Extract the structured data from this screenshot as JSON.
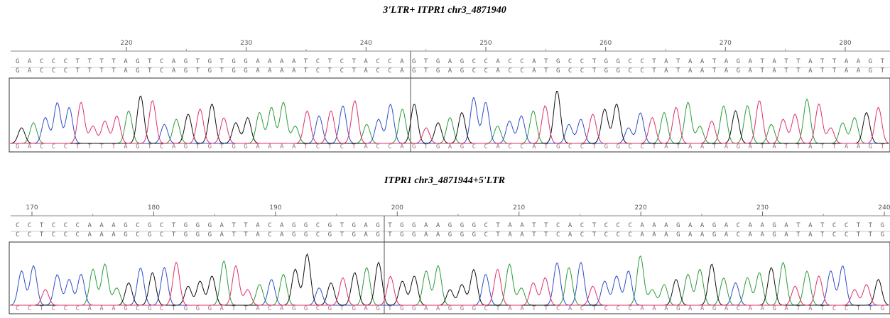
{
  "panels": [
    {
      "title": "3'LTR+ ITPR1   chr3_4871940",
      "ruler": [
        220,
        230,
        240,
        250,
        260,
        270,
        280
      ],
      "sequence": "GACCCTTTTAGTCAGTGTGGAAAATCTCTACCAGTGAGCCACCATGCCTGGCCTATAATAGATATTATTAAGT"
    },
    {
      "title": "ITPR1   chr3_4871944+5'LTR",
      "ruler": [
        170,
        180,
        190,
        200,
        210,
        220,
        230,
        240
      ],
      "sequence": "CCTCCCAAAGCGCTGGGATTACAGGCGTGAGTGGAAGGGCTAATTCACTCCCAAAGAAGACAAGATATCCTTG"
    }
  ]
}
